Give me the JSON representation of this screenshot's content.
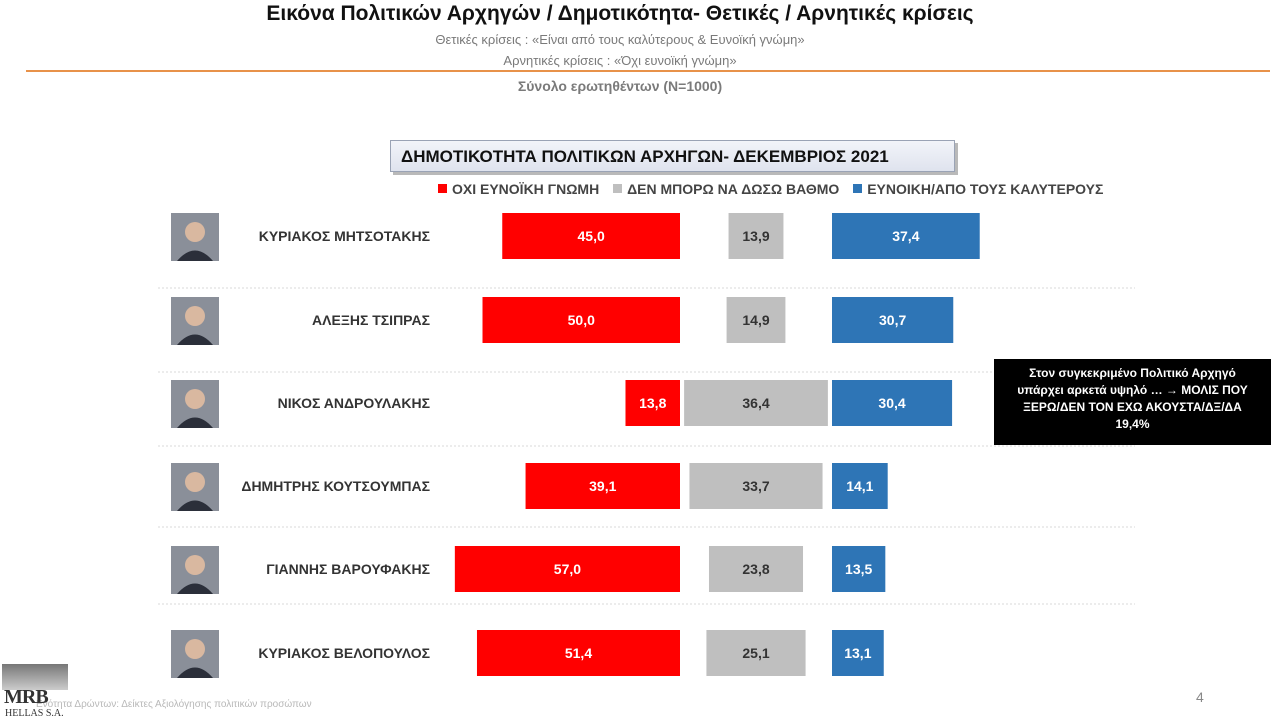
{
  "header": {
    "title": "Εικόνα Πολιτικών Αρχηγών  / Δημοτικότητα- Θετικές / Αρνητικές κρίσεις",
    "positive_def": "Θετικές κρίσεις : «Είναι από τους καλύτερους &  Ευνοϊκή γνώμη»",
    "negative_def": "Αρνητικές κρίσεις : «Όχι ευνοϊκή γνώμη»",
    "sample": "Σύνολο ερωτηθέντων (N=1000)"
  },
  "chart_data": {
    "type": "bar",
    "title": "ΔΗΜΟΤΙΚΟΤΗΤΑ ΠΟΛΙΤΙΚΩΝ ΑΡΧΗΓΩΝ- ΔΕΚΕΜΒΡΙΟΣ 2021",
    "categories": [
      "ΚΥΡΙΑΚΟΣ ΜΗΤΣΟΤΑΚΗΣ",
      "ΑΛΕΞΗΣ ΤΣΙΠΡΑΣ",
      "ΝΙΚΟΣ ΑΝΔΡΟΥΛΑΚΗΣ",
      "ΔΗΜΗΤΡΗΣ ΚΟΥΤΣΟΥΜΠΑΣ",
      "ΓΙΑΝΝΗΣ ΒΑΡΟΥΦΑΚΗΣ",
      "ΚΥΡΙΑΚΟΣ ΒΕΛΟΠΟΥΛΟΣ"
    ],
    "series": [
      {
        "name": "ΟΧΙ ΕΥΝΟΪΚΗ ΓΝΩΜΗ",
        "color": "#ff0000",
        "values": [
          45.0,
          50.0,
          13.8,
          39.1,
          57.0,
          51.4
        ],
        "labels": [
          "45,0",
          "50,0",
          "13,8",
          "39,1",
          "57,0",
          "51,4"
        ]
      },
      {
        "name": "ΔΕΝ ΜΠΟΡΩ ΝΑ ΔΩΣΩ ΒΑΘΜΟ",
        "color": "#bfbfbf",
        "values": [
          13.9,
          14.9,
          36.4,
          33.7,
          23.8,
          25.1
        ],
        "labels": [
          "13,9",
          "14,9",
          "36,4",
          "33,7",
          "23,8",
          "25,1"
        ]
      },
      {
        "name": "ΕΥΝΟΙΚΗ/ΑΠΟ ΤΟΥΣ ΚΑΛΥΤΕΡΟΥΣ",
        "color": "#2e75b6",
        "values": [
          37.4,
          30.7,
          30.4,
          14.1,
          13.5,
          13.1
        ],
        "labels": [
          "37,4",
          "30,7",
          "30,4",
          "14,1",
          "13,5",
          "13,1"
        ]
      }
    ]
  },
  "callout": {
    "line1": "Στον συγκεκριμένο Πολιτικό Αρχηγό",
    "line2": "υπάρχει αρκετά υψηλό … → ΜΟΛΙΣ ΠΟΥ",
    "line3": "ΞΕΡΩ/ΔΕΝ ΤΟΝ ΕΧΩ ΑΚΟΥΣΤΑ/ΔΞ/ΔΑ",
    "line4": "19,4%"
  },
  "footer": {
    "page_number": "4",
    "footnote": "Ενότητα Δρώντων: Δείκτες Αξιολόγησης πολιτικών προσώπων",
    "logo_text": "MRB",
    "logo_subtext": "HELLAS S.A."
  }
}
